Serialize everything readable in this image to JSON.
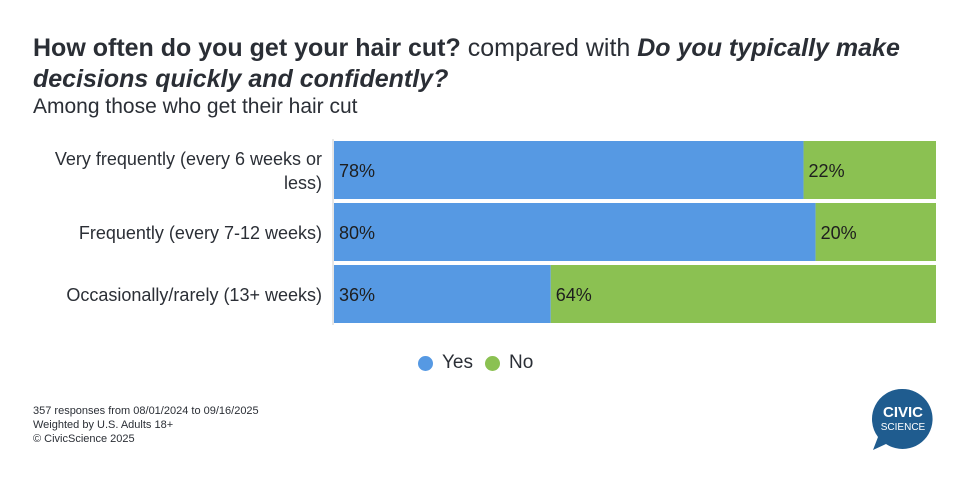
{
  "title": {
    "part1": "How often do you get your hair cut?",
    "part2": " compared with ",
    "part3": "Do you typically make decisions quickly and confidently?"
  },
  "subtitle": "Among those who get their hair cut",
  "chart_data": {
    "type": "bar",
    "orientation": "horizontal",
    "stacked": "percent",
    "categories": [
      "Very frequently (every 6 weeks or less)",
      "Frequently (every 7-12 weeks)",
      "Occasionally/rarely (13+ weeks)"
    ],
    "category_lines": [
      [
        "Very frequently (every 6 weeks or",
        "less)"
      ],
      [
        "Frequently (every 7-12 weeks)"
      ],
      [
        "Occasionally/rarely (13+ weeks)"
      ]
    ],
    "series": [
      {
        "name": "Yes",
        "values": [
          78,
          80,
          36
        ],
        "labels": [
          "78%",
          "80%",
          "36%"
        ],
        "color": "#5699e3"
      },
      {
        "name": "No",
        "values": [
          22,
          20,
          64
        ],
        "labels": [
          "22%",
          "20%",
          "64%"
        ],
        "color": "#8bc152"
      }
    ],
    "xlim": [
      0,
      100
    ],
    "legend_position": "bottom-center",
    "grid": false
  },
  "footer": {
    "line1": "357 responses from 08/01/2024 to 09/16/2025",
    "line2": "Weighted by U.S. Adults 18+",
    "line3": "© CivicScience 2025"
  },
  "logo": {
    "line1": "CIVIC",
    "line2": "SCIENCE",
    "color": "#1f5c8f"
  }
}
